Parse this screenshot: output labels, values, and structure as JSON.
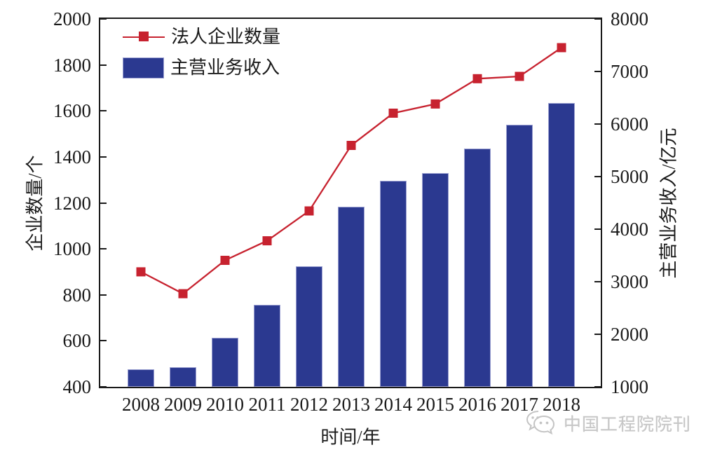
{
  "chart_data": {
    "type": "bar",
    "subtype": "bar+line-dual-axis",
    "categories": [
      "2008",
      "2009",
      "2010",
      "2011",
      "2012",
      "2013",
      "2014",
      "2015",
      "2016",
      "2017",
      "2018"
    ],
    "series": [
      {
        "name": "法人企业数量",
        "type": "line",
        "axis": "left",
        "color": "#C7222F",
        "marker": "square",
        "values": [
          900,
          805,
          950,
          1035,
          1165,
          1450,
          1590,
          1630,
          1740,
          1750,
          1875
        ]
      },
      {
        "name": "主营业务收入",
        "type": "bar",
        "axis": "right",
        "color": "#2B3990",
        "values": [
          1340,
          1380,
          1940,
          2565,
          3295,
          4430,
          4915,
          5070,
          5530,
          5985,
          6395
        ]
      }
    ],
    "xlabel": "时间/年",
    "ylabel_left": "企业数量/个",
    "ylabel_right": "主营业务收入/亿元",
    "ylim_left": [
      400,
      2000
    ],
    "yticks_left": [
      400,
      600,
      800,
      1000,
      1200,
      1400,
      1600,
      1800,
      2000
    ],
    "ylim_right": [
      1000,
      8000
    ],
    "yticks_right": [
      1000,
      2000,
      3000,
      4000,
      5000,
      6000,
      7000,
      8000
    ],
    "legend_position": "top-left",
    "grid": false
  },
  "watermark": {
    "text": "中国工程院院刊",
    "icon": "wechat-logo-icon",
    "color": "#c6c6c6"
  },
  "colors": {
    "axis": "#1a1a1a",
    "text": "#1a1a1a",
    "background": "#ffffff"
  }
}
